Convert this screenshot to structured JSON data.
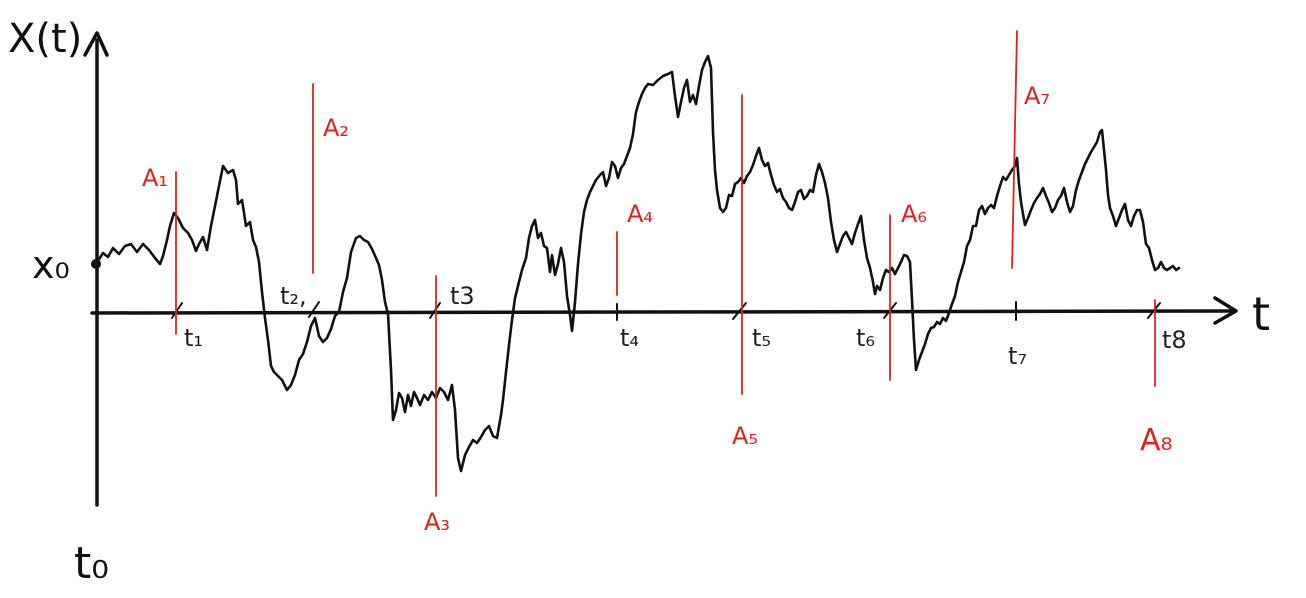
{
  "diagram": {
    "y_axis_label": "X(t)",
    "x_axis_label": "t",
    "origin_label": "t₀",
    "start_value_label": "x₀",
    "time_ticks": [
      "t₁",
      "t₂,",
      "t3",
      "t₄",
      "t₅",
      "t₆",
      "t₇",
      "t8"
    ],
    "markers": [
      "A₁",
      "A₂",
      "A₃",
      "A₄",
      "A₅",
      "A₆",
      "A₇",
      "A₈"
    ],
    "colors": {
      "path": "#111111",
      "axis": "#111111",
      "marker": "#e0211d"
    }
  }
}
